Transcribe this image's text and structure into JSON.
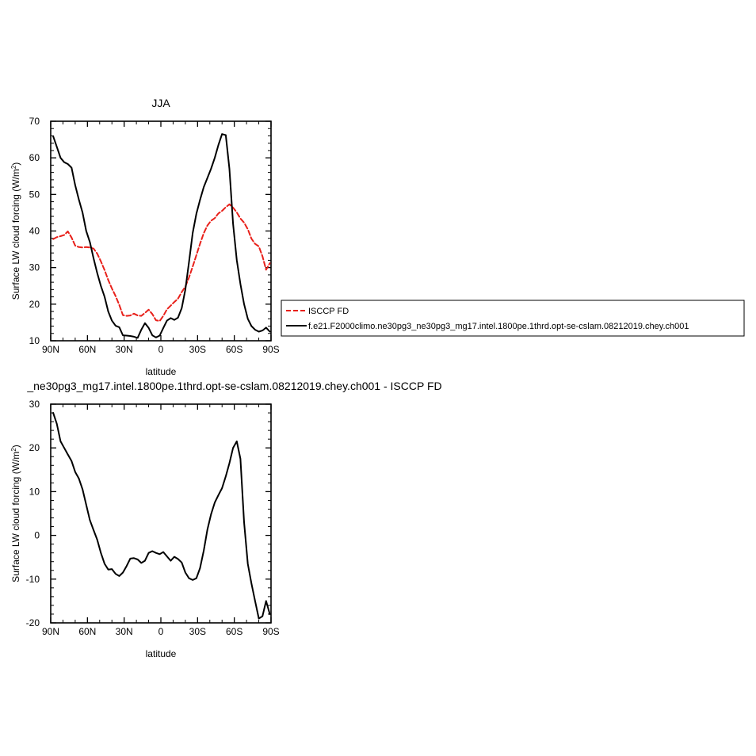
{
  "chart_data": [
    {
      "type": "line",
      "title": "JJA",
      "xlabel": "latitude",
      "ylabel": "Surface LW cloud forcing (W/m",
      "ylabel_sup": "2",
      "ylabel_close": ")",
      "xlim": [
        90,
        -90
      ],
      "ylim": [
        10,
        70
      ],
      "xticks": [
        {
          "value": 90,
          "label": "90N"
        },
        {
          "value": 60,
          "label": "60N"
        },
        {
          "value": 30,
          "label": "30N"
        },
        {
          "value": 0,
          "label": "0"
        },
        {
          "value": -30,
          "label": "30S"
        },
        {
          "value": -60,
          "label": "60S"
        },
        {
          "value": -90,
          "label": "90S"
        }
      ],
      "yticks": [
        {
          "value": 10,
          "label": "10"
        },
        {
          "value": 20,
          "label": "20"
        },
        {
          "value": 30,
          "label": "30"
        },
        {
          "value": 40,
          "label": "40"
        },
        {
          "value": 50,
          "label": "50"
        },
        {
          "value": 60,
          "label": "60"
        },
        {
          "value": 70,
          "label": "70"
        }
      ],
      "legend": {
        "placement": "right",
        "entries": [
          {
            "name": "ISCCP FD",
            "color": "#e8201a",
            "dash": "dashed"
          },
          {
            "name": "f.e21.F2000climo.ne30pg3_ne30pg3_mg17.intel.1800pe.1thrd.opt-se-cslam.08212019.chey.ch001",
            "color": "#000000",
            "dash": "solid"
          }
        ]
      },
      "series": [
        {
          "name": "ISCCP FD",
          "color": "#e8201a",
          "dash": "dashed",
          "x": [
            88,
            85,
            82,
            79,
            76,
            73,
            70,
            67,
            64,
            61,
            58,
            55,
            52,
            49,
            46,
            43,
            40,
            37,
            34,
            31,
            28,
            25,
            22,
            19,
            16,
            13,
            10,
            7,
            4,
            1,
            -2,
            -5,
            -8,
            -11,
            -14,
            -17,
            -20,
            -23,
            -26,
            -29,
            -32,
            -35,
            -38,
            -41,
            -44,
            -47,
            -50,
            -53,
            -56,
            -59,
            -62,
            -65,
            -68,
            -71,
            -74,
            -77,
            -80,
            -83,
            -86,
            -89
          ],
          "values": [
            37.8,
            38.3,
            38.6,
            38.9,
            39.9,
            38.2,
            36.0,
            35.6,
            35.5,
            35.6,
            35.5,
            35.2,
            33.8,
            31.7,
            29.3,
            26.6,
            24.3,
            22.2,
            19.8,
            17.0,
            16.8,
            16.9,
            17.4,
            16.9,
            16.8,
            17.6,
            18.5,
            17.3,
            15.6,
            15.4,
            16.8,
            18.6,
            19.6,
            20.6,
            21.5,
            23.3,
            24.8,
            27.3,
            30.3,
            33.4,
            36.5,
            39.4,
            41.5,
            42.8,
            43.5,
            44.8,
            45.5,
            46.5,
            47.3,
            46.4,
            45.1,
            43.4,
            42.3,
            40.5,
            37.9,
            36.5,
            35.8,
            33.1,
            29.4,
            31.2
          ]
        },
        {
          "name": "f.e21.F2000climo.ne30pg3_ne30pg3_mg17.intel.1800pe.1thrd.opt-se-cslam.08212019.chey.ch001",
          "color": "#000000",
          "dash": "solid",
          "x": [
            88,
            85,
            82,
            79,
            76,
            73,
            70,
            67,
            64,
            61,
            58,
            55,
            52,
            49,
            46,
            43,
            40,
            37,
            34,
            31,
            28,
            25,
            22,
            19,
            16,
            13,
            10,
            7,
            4,
            1,
            -2,
            -5,
            -8,
            -11,
            -14,
            -17,
            -20,
            -23,
            -26,
            -29,
            -32,
            -35,
            -38,
            -41,
            -44,
            -47,
            -50,
            -53,
            -56,
            -59,
            -62,
            -65,
            -68,
            -71,
            -74,
            -77,
            -80,
            -83,
            -86,
            -89
          ],
          "values": [
            65.9,
            63.0,
            60.0,
            58.8,
            58.3,
            57.3,
            52.5,
            48.6,
            45.0,
            40.0,
            37.0,
            32.5,
            28.5,
            25.0,
            22.0,
            18.0,
            15.5,
            14.1,
            13.7,
            11.5,
            11.4,
            11.3,
            11.1,
            10.8,
            13.0,
            14.8,
            13.5,
            11.5,
            10.9,
            11.4,
            13.5,
            15.5,
            16.2,
            15.7,
            16.3,
            18.9,
            24.0,
            31.5,
            39.5,
            44.7,
            48.5,
            52.0,
            54.5,
            57.0,
            60.0,
            63.5,
            66.5,
            66.2,
            57.0,
            42.0,
            32.0,
            25.5,
            20.0,
            16.0,
            14.0,
            13.0,
            12.5,
            12.8,
            13.6,
            12.5
          ]
        }
      ]
    },
    {
      "type": "line",
      "title": "_ne30pg3_mg17.intel.1800pe.1thrd.opt-se-cslam.08212019.chey.ch001 - ISCCP FD",
      "xlabel": "latitude",
      "ylabel": "Surface LW cloud forcing (W/m",
      "ylabel_sup": "2",
      "ylabel_close": ")",
      "xlim": [
        90,
        -90
      ],
      "ylim": [
        -20,
        30
      ],
      "xticks": [
        {
          "value": 90,
          "label": "90N"
        },
        {
          "value": 60,
          "label": "60N"
        },
        {
          "value": 30,
          "label": "30N"
        },
        {
          "value": 0,
          "label": "0"
        },
        {
          "value": -30,
          "label": "30S"
        },
        {
          "value": -60,
          "label": "60S"
        },
        {
          "value": -90,
          "label": "90S"
        }
      ],
      "yticks": [
        {
          "value": -20,
          "label": "-20"
        },
        {
          "value": -10,
          "label": "-10"
        },
        {
          "value": 0,
          "label": "0"
        },
        {
          "value": 10,
          "label": "10"
        },
        {
          "value": 20,
          "label": "20"
        },
        {
          "value": 30,
          "label": "30"
        }
      ],
      "series": [
        {
          "name": "",
          "color": "#000000",
          "dash": "solid",
          "x": [
            88,
            85,
            82,
            79,
            76,
            73,
            70,
            67,
            64,
            61,
            58,
            55,
            52,
            49,
            46,
            43,
            40,
            37,
            34,
            31,
            28,
            25,
            22,
            19,
            16,
            13,
            10,
            7,
            4,
            1,
            -2,
            -5,
            -8,
            -11,
            -14,
            -17,
            -20,
            -23,
            -26,
            -29,
            -32,
            -35,
            -38,
            -41,
            -44,
            -47,
            -50,
            -53,
            -56,
            -59,
            -62,
            -65,
            -68,
            -71,
            -74,
            -77,
            -80,
            -83,
            -86,
            -89
          ],
          "values": [
            28.0,
            25.5,
            21.5,
            20.0,
            18.5,
            17.0,
            14.5,
            13.0,
            10.5,
            7.0,
            3.5,
            1.2,
            -1.0,
            -4.0,
            -6.5,
            -7.8,
            -7.7,
            -8.8,
            -9.3,
            -8.5,
            -7.0,
            -5.3,
            -5.2,
            -5.5,
            -6.3,
            -5.8,
            -4.0,
            -3.6,
            -4.0,
            -4.3,
            -3.8,
            -4.8,
            -5.8,
            -4.9,
            -5.4,
            -6.2,
            -8.5,
            -9.8,
            -10.2,
            -9.8,
            -7.5,
            -3.5,
            1.3,
            4.8,
            7.5,
            9.2,
            10.8,
            13.5,
            16.5,
            20.0,
            21.5,
            17.5,
            3.0,
            -6.5,
            -11.0,
            -15.0,
            -19.0,
            -18.5,
            -15.0,
            -18.0
          ]
        }
      ]
    }
  ]
}
